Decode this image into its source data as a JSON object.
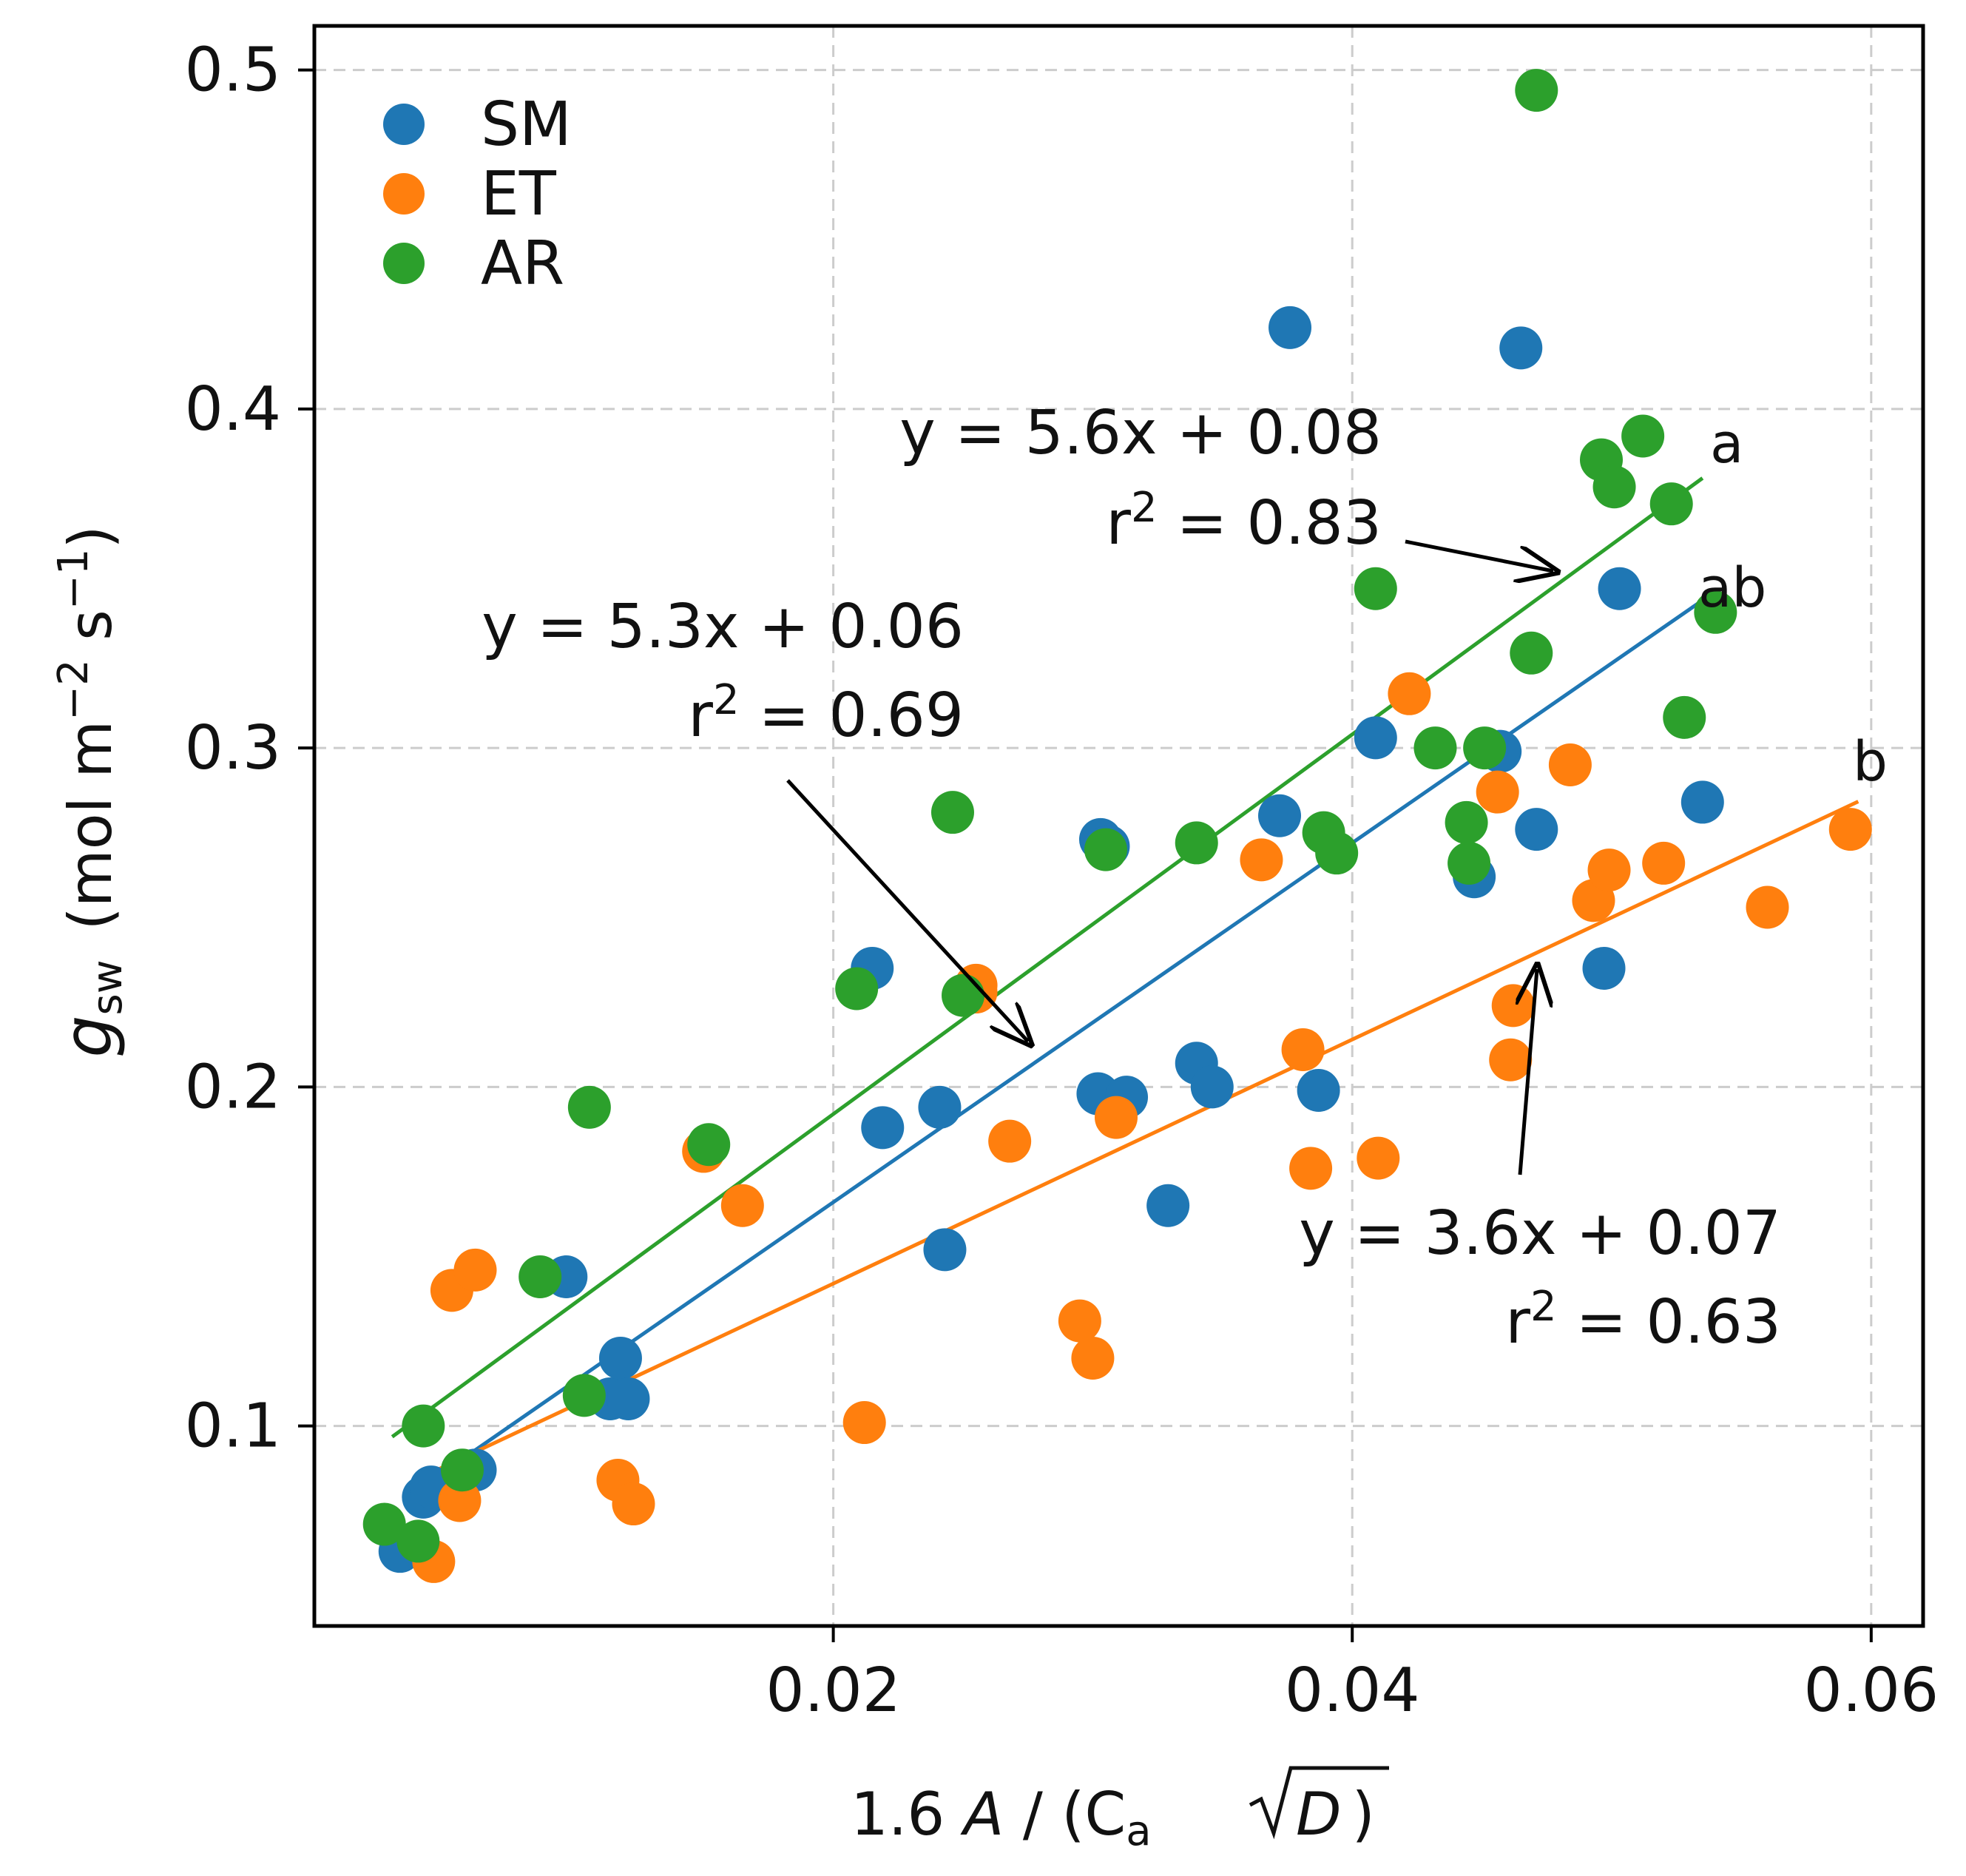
{
  "chart_data": {
    "type": "scatter",
    "xlabel": {
      "prefix": "1.6 ",
      "A": "A",
      "mid": " / (C",
      "a": "a",
      "D": "D",
      "suffix": ")"
    },
    "ylabel": {
      "g": "g",
      "sub": "sw",
      "units": "(mol m",
      "exp1": "−2",
      "s": " s",
      "exp2": "−1",
      "close": ")"
    },
    "xlim": [
      0.0,
      0.062
    ],
    "ylim": [
      0.041,
      0.513
    ],
    "xticks": [
      0.02,
      0.04,
      0.06
    ],
    "xtick_labels": [
      "0.02",
      "0.04",
      "0.06"
    ],
    "yticks": [
      0.1,
      0.2,
      0.3,
      0.4,
      0.5
    ],
    "ytick_labels": [
      "0.1",
      "0.2",
      "0.3",
      "0.4",
      "0.5"
    ],
    "grid": true,
    "legend_position": "top-left",
    "series": [
      {
        "name": "SM",
        "color": "#1f77b4",
        "points": [
          [
            0.0033,
            0.063
          ],
          [
            0.0042,
            0.079
          ],
          [
            0.0045,
            0.082
          ],
          [
            0.0062,
            0.087
          ],
          [
            0.0097,
            0.144
          ],
          [
            0.0114,
            0.108
          ],
          [
            0.0118,
            0.12
          ],
          [
            0.0121,
            0.108
          ],
          [
            0.0215,
            0.235
          ],
          [
            0.0219,
            0.188
          ],
          [
            0.0241,
            0.194
          ],
          [
            0.0243,
            0.152
          ],
          [
            0.0302,
            0.198
          ],
          [
            0.0303,
            0.273
          ],
          [
            0.0306,
            0.271
          ],
          [
            0.0313,
            0.197
          ],
          [
            0.0329,
            0.165
          ],
          [
            0.034,
            0.207
          ],
          [
            0.0346,
            0.2
          ],
          [
            0.0372,
            0.28
          ],
          [
            0.0376,
            0.424
          ],
          [
            0.0387,
            0.199
          ],
          [
            0.0409,
            0.303
          ],
          [
            0.0447,
            0.262
          ],
          [
            0.0457,
            0.299
          ],
          [
            0.0465,
            0.418
          ],
          [
            0.0471,
            0.276
          ],
          [
            0.0497,
            0.235
          ],
          [
            0.0503,
            0.347
          ],
          [
            0.0535,
            0.284
          ]
        ],
        "fit": {
          "slope": 5.3,
          "intercept": 0.06,
          "x_range": [
            0.0036,
            0.0535
          ],
          "label": "ab"
        }
      },
      {
        "name": "ET",
        "color": "#ff7f0e",
        "points": [
          [
            0.0046,
            0.06
          ],
          [
            0.0053,
            0.14
          ],
          [
            0.0056,
            0.078
          ],
          [
            0.0062,
            0.146
          ],
          [
            0.0117,
            0.084
          ],
          [
            0.0123,
            0.077
          ],
          [
            0.015,
            0.181
          ],
          [
            0.0165,
            0.165
          ],
          [
            0.0212,
            0.101
          ],
          [
            0.0255,
            0.228
          ],
          [
            0.0268,
            0.184
          ],
          [
            0.0295,
            0.131
          ],
          [
            0.03,
            0.12
          ],
          [
            0.0309,
            0.191
          ],
          [
            0.0365,
            0.267
          ],
          [
            0.0381,
            0.211
          ],
          [
            0.0384,
            0.176
          ],
          [
            0.041,
            0.179
          ],
          [
            0.0422,
            0.316
          ],
          [
            0.0456,
            0.287
          ],
          [
            0.0462,
            0.224
          ],
          [
            0.0484,
            0.295
          ],
          [
            0.0493,
            0.255
          ],
          [
            0.0499,
            0.264
          ],
          [
            0.052,
            0.266
          ],
          [
            0.056,
            0.253
          ],
          [
            0.0592,
            0.276
          ],
          [
            0.0461,
            0.208
          ],
          [
            0.0255,
            0.23
          ]
        ],
        "fit": {
          "slope": 3.6,
          "intercept": 0.07,
          "x_range": [
            0.0046,
            0.0595
          ],
          "label": "b"
        }
      },
      {
        "name": "AR",
        "color": "#2ca02c",
        "points": [
          [
            0.0027,
            0.071
          ],
          [
            0.004,
            0.066
          ],
          [
            0.0042,
            0.1
          ],
          [
            0.0057,
            0.087
          ],
          [
            0.0087,
            0.144
          ],
          [
            0.0104,
            0.109
          ],
          [
            0.0106,
            0.194
          ],
          [
            0.0152,
            0.183
          ],
          [
            0.0209,
            0.229
          ],
          [
            0.0246,
            0.281
          ],
          [
            0.025,
            0.227
          ],
          [
            0.0305,
            0.27
          ],
          [
            0.034,
            0.272
          ],
          [
            0.0389,
            0.275
          ],
          [
            0.0394,
            0.269
          ],
          [
            0.0409,
            0.347
          ],
          [
            0.0432,
            0.3
          ],
          [
            0.0444,
            0.278
          ],
          [
            0.0445,
            0.266
          ],
          [
            0.0451,
            0.3
          ],
          [
            0.0469,
            0.328
          ],
          [
            0.0471,
            0.494
          ],
          [
            0.0496,
            0.385
          ],
          [
            0.0501,
            0.377
          ],
          [
            0.0512,
            0.392
          ],
          [
            0.0523,
            0.372
          ],
          [
            0.0528,
            0.309
          ],
          [
            0.054,
            0.34
          ]
        ],
        "fit": {
          "slope": 5.6,
          "intercept": 0.08,
          "x_range": [
            0.003,
            0.0535
          ],
          "label": "a"
        }
      }
    ],
    "annotations": [
      {
        "series": "AR",
        "eq": "y = 5.6x + 0.08",
        "r2_pre": "r",
        "r2_sup": "2",
        "r2_val": " = 0.83"
      },
      {
        "series": "SM",
        "eq": "y = 5.3x + 0.06",
        "r2_pre": "r",
        "r2_sup": "2",
        "r2_val": " = 0.69"
      },
      {
        "series": "ET",
        "eq": "y = 3.6x + 0.07",
        "r2_pre": "r",
        "r2_sup": "2",
        "r2_val": " = 0.63"
      }
    ]
  }
}
